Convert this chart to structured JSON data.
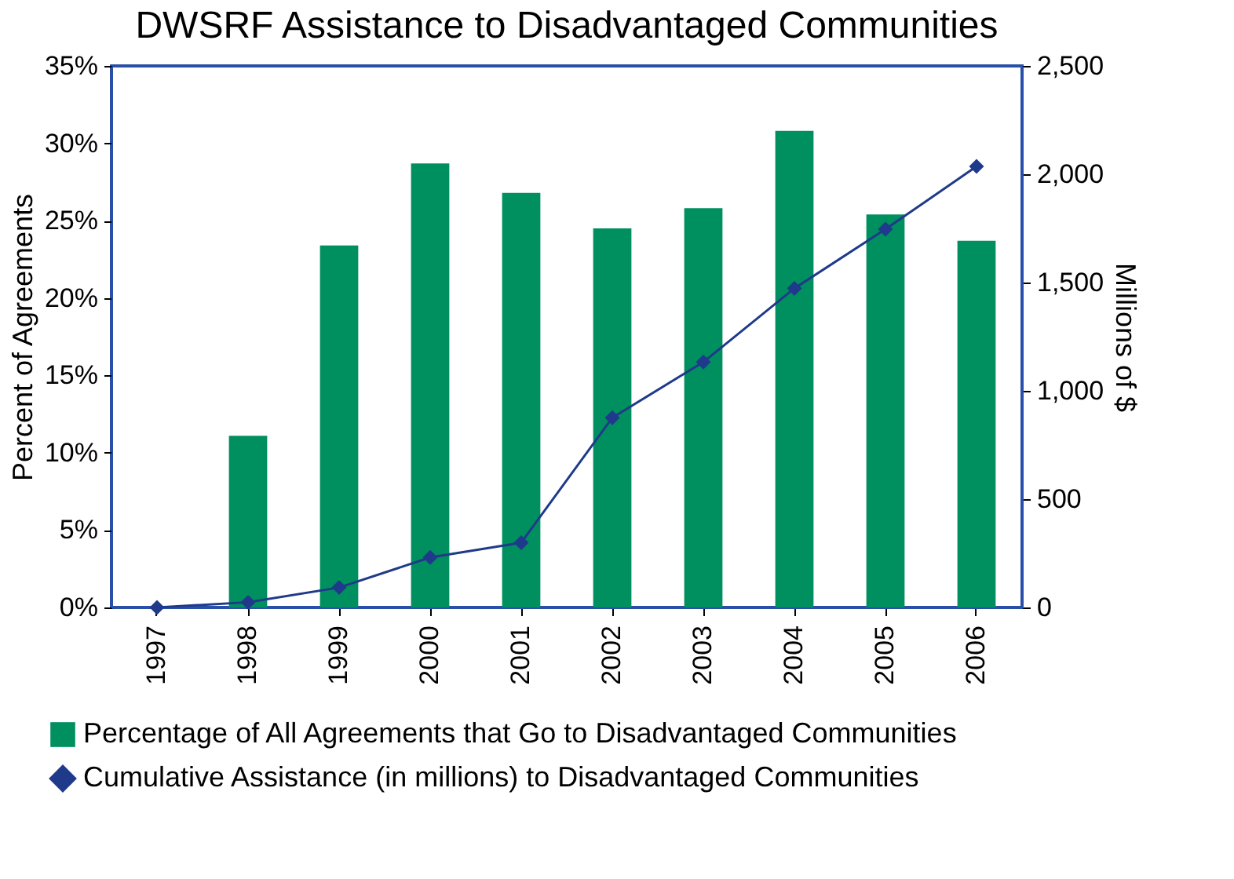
{
  "chart_data": {
    "type": "bar",
    "title": "DWSRF Assistance to Disadvantaged Communities",
    "ylabel": "Percent of Agreements",
    "y2label": "Millions of $",
    "categories": [
      "1997",
      "1998",
      "1999",
      "2000",
      "2001",
      "2002",
      "2003",
      "2004",
      "2005",
      "2006"
    ],
    "series": [
      {
        "name": "Percentage of All Agreements that Go to Disadvantaged Communities",
        "color": "#008f5f",
        "values": [
          null,
          11.1,
          23.4,
          28.7,
          26.8,
          24.5,
          25.8,
          30.8,
          25.4,
          23.7
        ]
      },
      {
        "name": "Cumulative Assistance (in millions) to Disadvantaged Communities",
        "type": "line",
        "axis": "y2",
        "color": "#1f3a8a",
        "marker": "diamond",
        "values": [
          0,
          24,
          92,
          231,
          299,
          876,
          1133,
          1473,
          1746,
          2036
        ]
      }
    ],
    "ylim": [
      0,
      35
    ],
    "yticks": [
      {
        "value": 0,
        "label": "0%"
      },
      {
        "value": 5,
        "label": "5%"
      },
      {
        "value": 10,
        "label": "10%"
      },
      {
        "value": 15,
        "label": "15%"
      },
      {
        "value": 20,
        "label": "20%"
      },
      {
        "value": 25,
        "label": "25%"
      },
      {
        "value": 30,
        "label": "30%"
      },
      {
        "value": 35,
        "label": "35%"
      }
    ],
    "y2lim": [
      0,
      2500
    ],
    "y2ticks": [
      0,
      500,
      {
        "value": 1000,
        "label": "1,000"
      },
      {
        "value": 1500,
        "label": "1,500"
      },
      {
        "value": 2000,
        "label": "2,000"
      },
      {
        "value": 2500,
        "label": "2,500"
      }
    ],
    "grid": false,
    "legend": "bottom"
  }
}
